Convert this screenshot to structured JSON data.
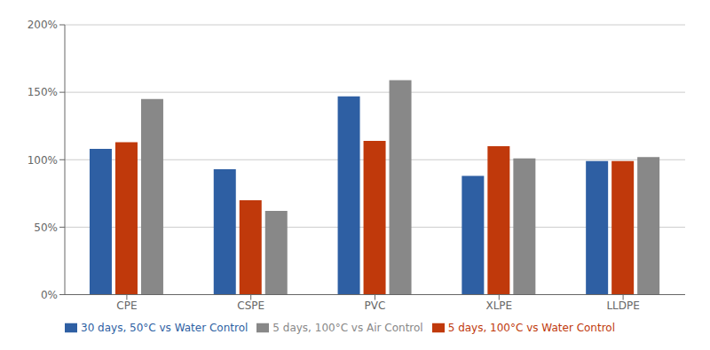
{
  "chart_data": {
    "type": "bar",
    "categories": [
      "CPE",
      "CSPE",
      "PVC",
      "XLPE",
      "LLDPE"
    ],
    "series": [
      {
        "name": "30 days, 50°C vs Water Control",
        "color": "#2E5FA3",
        "values": [
          1.08,
          0.93,
          1.47,
          0.88,
          0.99
        ]
      },
      {
        "name": "5 days, 100°C vs Water Control",
        "color": "#C0390B",
        "values": [
          1.13,
          0.7,
          1.14,
          1.1,
          0.99
        ]
      },
      {
        "name": "5 days, 100°C vs Air Control",
        "color": "#888888",
        "values": [
          1.45,
          0.62,
          1.59,
          1.01,
          1.02
        ]
      }
    ],
    "ylim": [
      0,
      2.0
    ],
    "yticks": [
      {
        "value": 0,
        "label": "0%"
      },
      {
        "value": 0.5,
        "label": "50%"
      },
      {
        "value": 1.0,
        "label": "100%"
      },
      {
        "value": 1.5,
        "label": "150%"
      },
      {
        "value": 2.0,
        "label": "200%"
      }
    ],
    "grid": true,
    "legend": "bottom"
  }
}
